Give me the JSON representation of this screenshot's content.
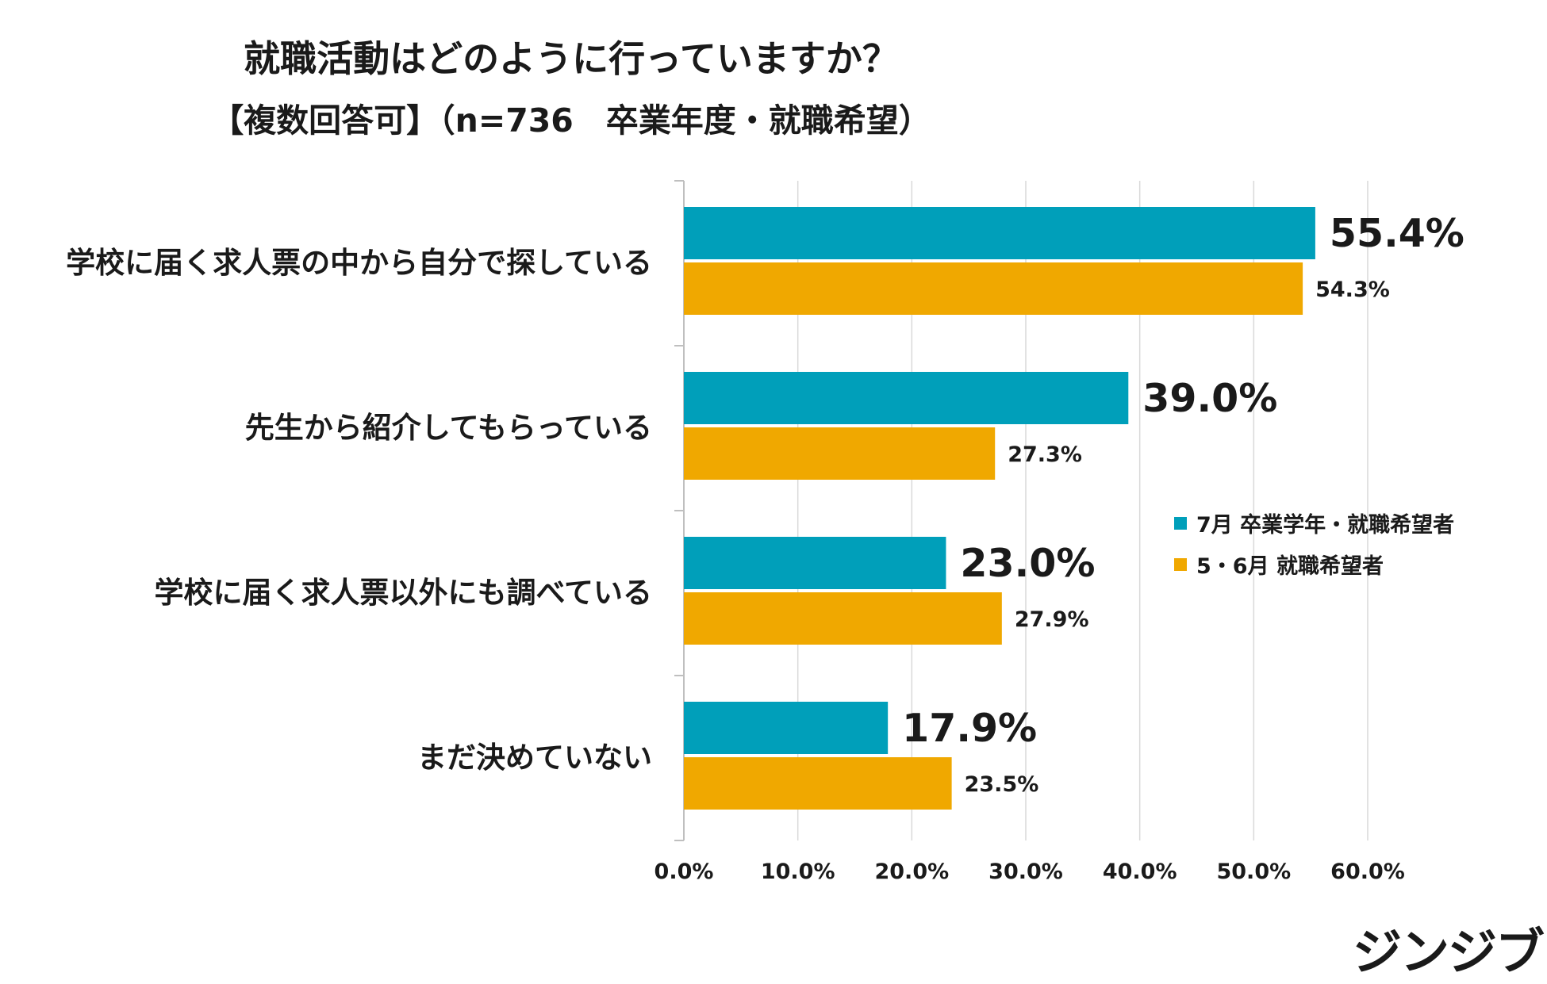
{
  "title": "就職活動はどのように行っていますか？",
  "subtitle": "【複数回答可】（n=736　卒業年度・就職希望）",
  "logo_text": "ジンジブ",
  "colors": {
    "series1": "#009FBA",
    "series2": "#F0A800",
    "grid": "#d9d9d9",
    "axis": "#bfbfbf"
  },
  "chart_data": {
    "type": "bar",
    "orientation": "horizontal",
    "title": "就職活動はどのように行っていますか？",
    "subtitle": "【複数回答可】（n=736　卒業年度・就職希望）",
    "categories": [
      "学校に届く求人票の中から自分で探している",
      "先生から紹介してもらっている",
      "学校に届く求人票以外にも調べている",
      "まだ決めていない"
    ],
    "series": [
      {
        "name": "7月 卒業学年・就職希望者",
        "values": [
          55.4,
          39.0,
          23.0,
          17.9
        ],
        "labels": [
          "55.4%",
          "39.0%",
          "23.0%",
          "17.9%"
        ]
      },
      {
        "name": "5・6月 就職希望者",
        "values": [
          54.3,
          27.3,
          27.9,
          23.5
        ],
        "labels": [
          "54.3%",
          "27.3%",
          "27.9%",
          "23.5%"
        ]
      }
    ],
    "xlim": [
      0,
      60
    ],
    "xticks": [
      "0.0%",
      "10.0%",
      "20.0%",
      "30.0%",
      "40.0%",
      "50.0%",
      "60.0%"
    ],
    "grid": true,
    "legend": "right"
  }
}
